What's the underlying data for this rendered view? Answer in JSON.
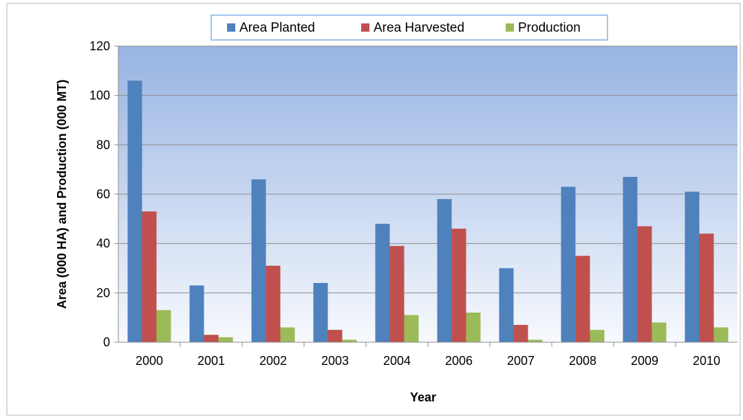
{
  "chart_data": {
    "type": "bar",
    "categories": [
      "2000",
      "2001",
      "2002",
      "2003",
      "2004",
      "2006",
      "2007",
      "2008",
      "2009",
      "2010"
    ],
    "series": [
      {
        "name": "Area Planted",
        "color": "#4F81BD",
        "values": [
          106,
          23,
          66,
          24,
          48,
          58,
          30,
          63,
          67,
          61
        ]
      },
      {
        "name": "Area Harvested",
        "color": "#C0504D",
        "values": [
          53,
          3,
          31,
          5,
          39,
          46,
          7,
          35,
          47,
          44
        ]
      },
      {
        "name": "Production",
        "color": "#9BBB59",
        "values": [
          13,
          2,
          6,
          1,
          11,
          12,
          1,
          5,
          8,
          6
        ]
      }
    ],
    "xlabel": "Year",
    "ylabel": "Area (000 HA) and Production (000 MT)",
    "ylim": [
      0,
      120
    ],
    "yticks": [
      0,
      20,
      40,
      60,
      80,
      100,
      120
    ],
    "grid": true,
    "legend": "top"
  }
}
